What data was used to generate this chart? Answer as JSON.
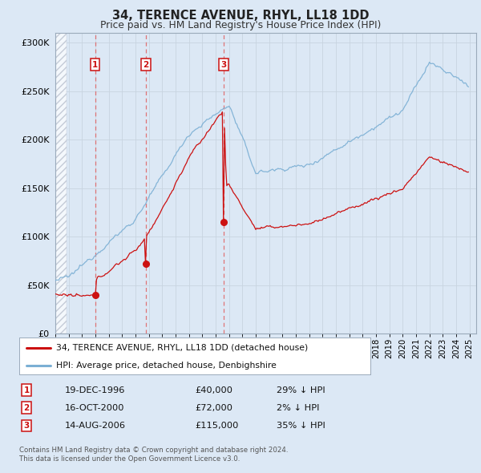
{
  "title": "34, TERENCE AVENUE, RHYL, LL18 1DD",
  "subtitle": "Price paid vs. HM Land Registry's House Price Index (HPI)",
  "ylim": [
    0,
    310000
  ],
  "yticks": [
    0,
    50000,
    100000,
    150000,
    200000,
    250000,
    300000
  ],
  "ytick_labels": [
    "£0",
    "£50K",
    "£100K",
    "£150K",
    "£200K",
    "£250K",
    "£300K"
  ],
  "xlim_start": 1994.0,
  "xlim_end": 2025.5,
  "bg_color": "#dce8f5",
  "plot_bg_color": "#dce8f5",
  "line1_color": "#cc1111",
  "line2_color": "#7bafd4",
  "vline_color": "#e06060",
  "transactions": [
    {
      "num": 1,
      "date": 1996.97,
      "price": 40000,
      "label": "1",
      "pct": "29%",
      "datestr": "19-DEC-1996"
    },
    {
      "num": 2,
      "date": 2000.79,
      "price": 72000,
      "label": "2",
      "pct": "2%",
      "datestr": "16-OCT-2000"
    },
    {
      "num": 3,
      "date": 2006.62,
      "price": 115000,
      "label": "3",
      "pct": "35%",
      "datestr": "14-AUG-2006"
    }
  ],
  "legend_line1": "34, TERENCE AVENUE, RHYL, LL18 1DD (detached house)",
  "legend_line2": "HPI: Average price, detached house, Denbighshire",
  "footer1": "Contains HM Land Registry data © Crown copyright and database right 2024.",
  "footer2": "This data is licensed under the Open Government Licence v3.0."
}
